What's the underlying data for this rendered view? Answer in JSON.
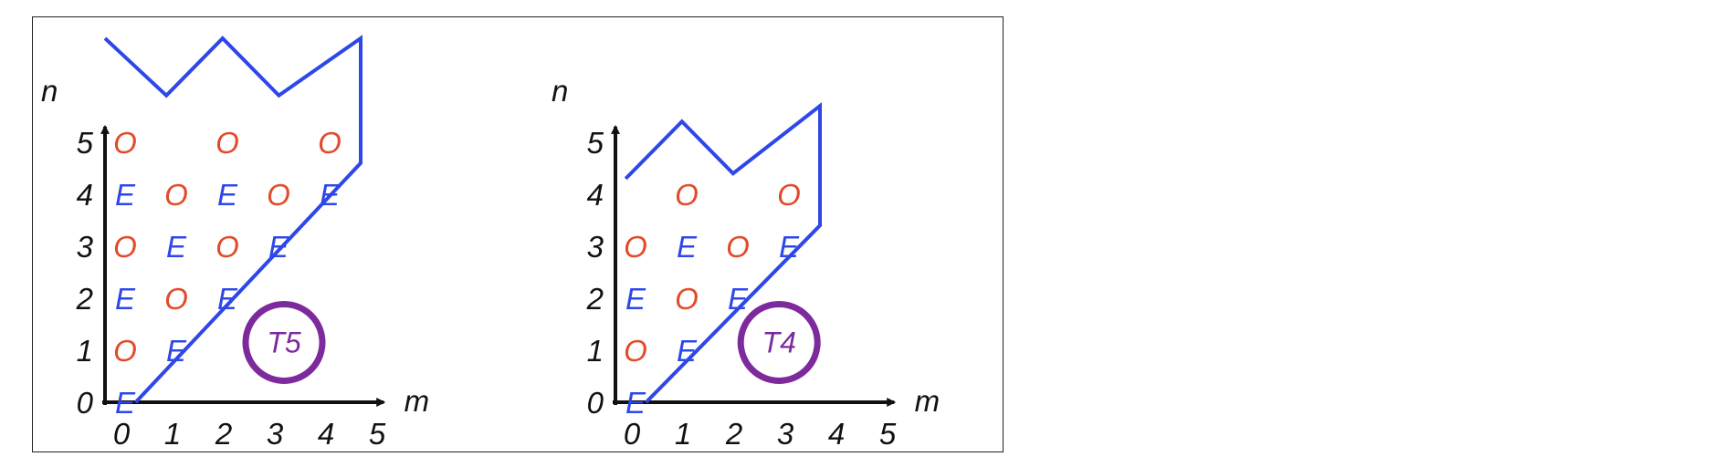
{
  "colors": {
    "even": "#2e47e8",
    "odd": "#e24a2a",
    "boundary": "#2e47e8",
    "badge": "#7d2a9c",
    "axis": "#111111"
  },
  "panels": [
    {
      "badge": "T5",
      "x_axis_label": "m",
      "y_axis_label": "n",
      "x_ticks": [
        "0",
        "1",
        "2",
        "3",
        "4",
        "5"
      ],
      "y_ticks": [
        "0",
        "1",
        "2",
        "3",
        "4",
        "5"
      ],
      "cells": [
        {
          "m": 0,
          "n": 0,
          "t": "E"
        },
        {
          "m": 0,
          "n": 1,
          "t": "O"
        },
        {
          "m": 1,
          "n": 1,
          "t": "E"
        },
        {
          "m": 0,
          "n": 2,
          "t": "E"
        },
        {
          "m": 1,
          "n": 2,
          "t": "O"
        },
        {
          "m": 2,
          "n": 2,
          "t": "E"
        },
        {
          "m": 0,
          "n": 3,
          "t": "O"
        },
        {
          "m": 1,
          "n": 3,
          "t": "E"
        },
        {
          "m": 2,
          "n": 3,
          "t": "O"
        },
        {
          "m": 3,
          "n": 3,
          "t": "E"
        },
        {
          "m": 0,
          "n": 4,
          "t": "E"
        },
        {
          "m": 1,
          "n": 4,
          "t": "O"
        },
        {
          "m": 2,
          "n": 4,
          "t": "E"
        },
        {
          "m": 3,
          "n": 4,
          "t": "O"
        },
        {
          "m": 4,
          "n": 4,
          "t": "E"
        },
        {
          "m": 0,
          "n": 5,
          "t": "O"
        },
        {
          "m": 2,
          "n": 5,
          "t": "O"
        },
        {
          "m": 4,
          "n": 5,
          "t": "O"
        }
      ],
      "boundary": [
        [
          -0.3,
          6.5
        ],
        [
          0.9,
          5.4
        ],
        [
          2.0,
          6.5
        ],
        [
          3.1,
          5.4
        ],
        [
          4.7,
          6.5
        ],
        [
          4.7,
          4.1
        ],
        [
          0.3,
          -0.5
        ]
      ]
    },
    {
      "badge": "T4",
      "x_axis_label": "m",
      "y_axis_label": "n",
      "x_ticks": [
        "0",
        "1",
        "2",
        "3",
        "4",
        "5"
      ],
      "y_ticks": [
        "0",
        "1",
        "2",
        "3",
        "4",
        "5"
      ],
      "cells": [
        {
          "m": 0,
          "n": 0,
          "t": "E"
        },
        {
          "m": 0,
          "n": 1,
          "t": "O"
        },
        {
          "m": 1,
          "n": 1,
          "t": "E"
        },
        {
          "m": 0,
          "n": 2,
          "t": "E"
        },
        {
          "m": 1,
          "n": 2,
          "t": "O"
        },
        {
          "m": 2,
          "n": 2,
          "t": "E"
        },
        {
          "m": 0,
          "n": 3,
          "t": "O"
        },
        {
          "m": 1,
          "n": 3,
          "t": "E"
        },
        {
          "m": 2,
          "n": 3,
          "t": "O"
        },
        {
          "m": 3,
          "n": 3,
          "t": "E"
        },
        {
          "m": 1,
          "n": 4,
          "t": "O"
        },
        {
          "m": 3,
          "n": 4,
          "t": "O"
        }
      ],
      "boundary": [
        [
          -0.1,
          3.8
        ],
        [
          1.0,
          4.9
        ],
        [
          2.0,
          3.9
        ],
        [
          3.7,
          5.2
        ],
        [
          3.7,
          2.9
        ],
        [
          0.3,
          -0.5
        ]
      ]
    }
  ]
}
